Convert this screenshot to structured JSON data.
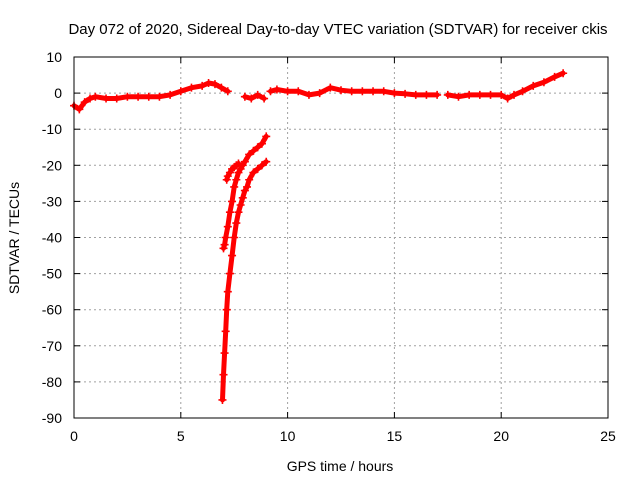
{
  "chart_data": {
    "type": "scatter",
    "title": "Day 072 of 2020, Sidereal Day-to-day VTEC variation (SDTVAR) for receiver ckis",
    "xlabel": "GPS time / hours",
    "ylabel": "SDTVAR / TECUs",
    "xlim": [
      0,
      25
    ],
    "ylim": [
      -90,
      10
    ],
    "xticks": [
      0,
      5,
      10,
      15,
      20,
      25
    ],
    "yticks": [
      10,
      0,
      -10,
      -20,
      -30,
      -40,
      -50,
      -60,
      -70,
      -80,
      -90
    ],
    "grid": true,
    "marker": "plus",
    "color": "#ff0000",
    "series": [
      {
        "x": [
          0.0,
          0.25,
          0.5,
          0.75,
          1.0,
          1.5,
          2.0,
          2.5,
          3.0,
          3.5,
          4.0,
          4.5,
          5.0,
          5.5,
          6.0,
          6.3,
          6.6,
          6.9,
          7.2
        ],
        "y": [
          -3.5,
          -4.5,
          -2.5,
          -1.5,
          -1.0,
          -1.5,
          -1.5,
          -1.0,
          -1.0,
          -1.0,
          -1.0,
          -0.5,
          0.5,
          1.5,
          2.0,
          2.8,
          2.5,
          1.5,
          0.5
        ]
      },
      {
        "x": [
          8.0,
          8.3,
          8.6,
          8.9
        ],
        "y": [
          -1.0,
          -1.5,
          -0.5,
          -1.5
        ]
      },
      {
        "x": [
          9.2,
          9.5,
          10.0,
          10.5,
          11.0,
          11.5,
          12.0,
          12.5,
          13.0,
          13.5,
          14.0,
          14.5,
          15.0,
          15.5,
          16.0,
          16.5,
          17.0
        ],
        "y": [
          0.5,
          1.0,
          0.5,
          0.5,
          -0.5,
          0.0,
          1.5,
          0.8,
          0.5,
          0.5,
          0.5,
          0.5,
          0.0,
          -0.2,
          -0.5,
          -0.5,
          -0.5
        ]
      },
      {
        "x": [
          17.5,
          18.0,
          18.5,
          19.0,
          19.5,
          20.0,
          20.3,
          20.6,
          21.0,
          21.5,
          22.0,
          22.5,
          22.9
        ],
        "y": [
          -0.5,
          -1.0,
          -0.5,
          -0.5,
          -0.5,
          -0.5,
          -1.5,
          -0.5,
          0.5,
          2.0,
          3.0,
          4.5,
          5.5
        ]
      },
      {
        "x": [
          6.95,
          7.0,
          7.05,
          7.1,
          7.15,
          7.2,
          7.3,
          7.4,
          7.5,
          7.6,
          7.7,
          7.8,
          7.9,
          8.0,
          8.1,
          8.2,
          8.4,
          8.6,
          8.8,
          9.0
        ],
        "y": [
          -85,
          -78,
          -72,
          -66,
          -60,
          -55,
          -50,
          -45,
          -40,
          -36,
          -33,
          -31,
          -29,
          -27,
          -26,
          -24,
          -22,
          -21,
          -20,
          -19
        ]
      },
      {
        "x": [
          7.0,
          7.05,
          7.1,
          7.2,
          7.3,
          7.4,
          7.5,
          7.6,
          7.7,
          7.8,
          7.9,
          8.0,
          8.2,
          8.4,
          8.6,
          8.8,
          9.0
        ],
        "y": [
          -43,
          -42,
          -40,
          -37,
          -33,
          -30,
          -26,
          -24,
          -22,
          -21,
          -20,
          -19,
          -17,
          -16,
          -15,
          -14,
          -12
        ]
      },
      {
        "x": [
          7.15,
          7.2,
          7.3,
          7.4,
          7.5,
          7.6,
          7.7
        ],
        "y": [
          -24,
          -23,
          -22,
          -21,
          -20.5,
          -20,
          -19.5
        ]
      }
    ]
  }
}
